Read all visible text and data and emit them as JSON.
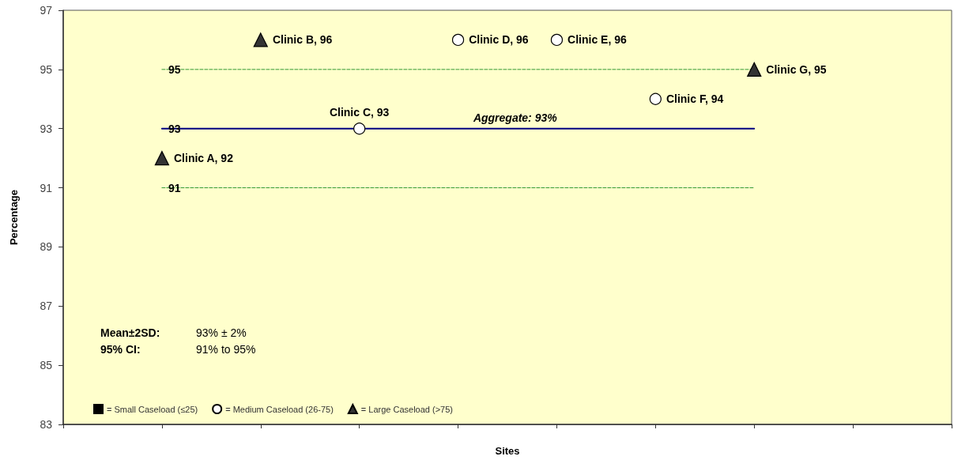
{
  "chart_data": {
    "type": "scatter",
    "xlabel": "Sites",
    "ylabel": "Percentage",
    "categories": [
      null,
      null,
      null,
      null,
      null,
      null,
      null,
      null,
      null,
      null
    ],
    "ylim": [
      83,
      97
    ],
    "yticks": [
      83,
      85,
      87,
      89,
      91,
      93,
      95,
      97
    ],
    "series": [
      {
        "name": "= Small Caseload (≤25)",
        "color": "#000000",
        "marker": "square",
        "values": [
          null,
          null,
          null,
          null,
          null,
          null,
          null,
          null,
          null,
          null
        ]
      },
      {
        "name": "= Medium Caseload (26-75)",
        "color": "#ffffff",
        "marker": "circle",
        "values": [
          null,
          null,
          null,
          93,
          96,
          96,
          94,
          null,
          null,
          null
        ],
        "value_labels": [
          null,
          null,
          null,
          "Clinic C, 93",
          "Clinic D, 96",
          "Clinic E, 96",
          "Clinic F, 94",
          null,
          null,
          null
        ]
      },
      {
        "name": "= Large Caseload (>75)",
        "color": "#333333",
        "marker": "triangle",
        "values": [
          null,
          92,
          96,
          null,
          null,
          null,
          null,
          95,
          null,
          null
        ],
        "value_labels": [
          null,
          "Clinic A, 92",
          "Clinic B, 96",
          null,
          null,
          null,
          null,
          "Clinic G, 95",
          null,
          null
        ]
      },
      {
        "type": "line",
        "color": "#339933",
        "line_style": "dashed",
        "marker": "none",
        "values": [
          null,
          95,
          95,
          95,
          95,
          95,
          95,
          95,
          null,
          null
        ],
        "value_labels": [
          null,
          "95",
          null,
          null,
          null,
          null,
          null,
          null,
          null,
          null
        ]
      },
      {
        "type": "line",
        "color": "#000080",
        "line_style": "solid",
        "marker": "none",
        "values": [
          null,
          93,
          93,
          93,
          93,
          93,
          93,
          93,
          null,
          null
        ],
        "value_labels": [
          null,
          "93",
          null,
          null,
          null,
          null,
          null,
          null,
          null,
          null
        ]
      },
      {
        "type": "line",
        "color": "#339933",
        "line_style": "dashed",
        "marker": "none",
        "values": [
          null,
          91,
          91,
          91,
          91,
          91,
          91,
          91,
          null,
          null
        ],
        "value_labels": [
          null,
          "91",
          null,
          null,
          null,
          null,
          null,
          null,
          null,
          null
        ]
      }
    ],
    "annotations": [
      {
        "text": "Aggregate: 93%",
        "y": 93
      },
      "Mean±2SD:",
      "93% ± 2%",
      "95% CI:",
      "91% to 95%"
    ],
    "legend": "bottom left"
  }
}
